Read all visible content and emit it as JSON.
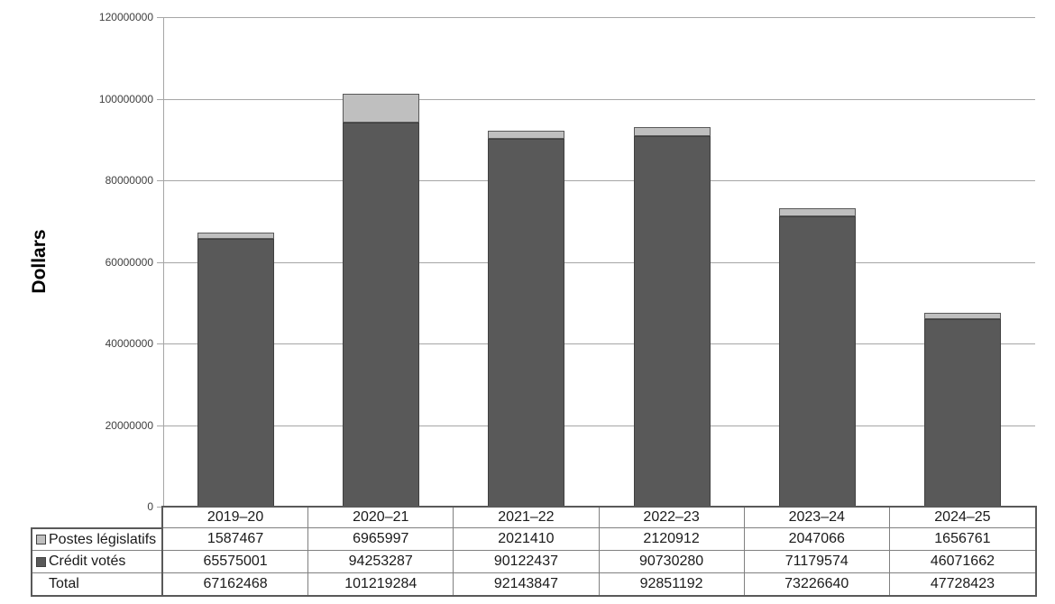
{
  "chart_data": {
    "type": "bar",
    "stacked": true,
    "title": "",
    "xlabel": "",
    "ylabel": "Dollars",
    "ylim": [
      0,
      120000000
    ],
    "yticks": [
      0,
      20000000,
      40000000,
      60000000,
      80000000,
      100000000,
      120000000
    ],
    "grid": true,
    "legend_position": "table-row-headers",
    "categories": [
      "2019–20",
      "2020–21",
      "2021–22",
      "2022–23",
      "2023–24",
      "2024–25"
    ],
    "series": [
      {
        "name": "Postes législatifs",
        "stack_order": "top",
        "color": "#bfbfbf",
        "border_color": "#595959",
        "values": [
          1587467,
          6965997,
          2021410,
          2120912,
          2047066,
          1656761
        ]
      },
      {
        "name": "Crédit votés",
        "stack_order": "bottom",
        "color": "#595959",
        "border_color": "#404040",
        "values": [
          65575001,
          94253287,
          90122437,
          90730280,
          71179574,
          46071662
        ]
      }
    ],
    "totals": {
      "name": "Total",
      "values": [
        67162468,
        101219284,
        92143847,
        92851192,
        73226640,
        47728423
      ]
    }
  },
  "colors": {
    "gridline": "#a6a6a6",
    "table_inner_border": "#808080",
    "table_outer_border": "#595959",
    "text": "#1a1a1a"
  }
}
